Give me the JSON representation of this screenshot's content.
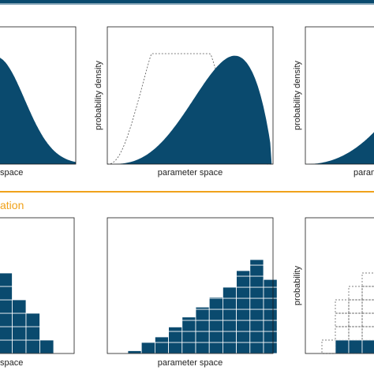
{
  "colors": {
    "fill": "#0a4a6e",
    "panel_line": "#1a1a1a",
    "top_band": "#0a4a6e",
    "accent": "#f0a21b",
    "cell_grid": "#ffffff",
    "dashed": "#555555"
  },
  "top_row": {
    "panels": [
      {
        "xlabel": "space",
        "ylabel": ""
      },
      {
        "xlabel": "parameter space",
        "ylabel": "probability density"
      },
      {
        "xlabel": "param",
        "ylabel": "probability density"
      }
    ]
  },
  "section_label": "ation",
  "bottom_row": {
    "panels": [
      {
        "xlabel": "space",
        "ylabel": ""
      },
      {
        "xlabel": "parameter space",
        "ylabel": ""
      },
      {
        "xlabel": "",
        "ylabel": "probability"
      }
    ]
  },
  "histograms": {
    "left": [
      7,
      7,
      6,
      4,
      3,
      1
    ],
    "middle": [
      0.25,
      1,
      1.5,
      2.4,
      3.3,
      4.2,
      5.1,
      6.0,
      7.5,
      8.5,
      6.7
    ],
    "right_dashed": [
      1,
      4,
      5,
      6,
      8
    ],
    "right_solid": [
      0,
      1,
      1,
      1,
      1
    ]
  }
}
